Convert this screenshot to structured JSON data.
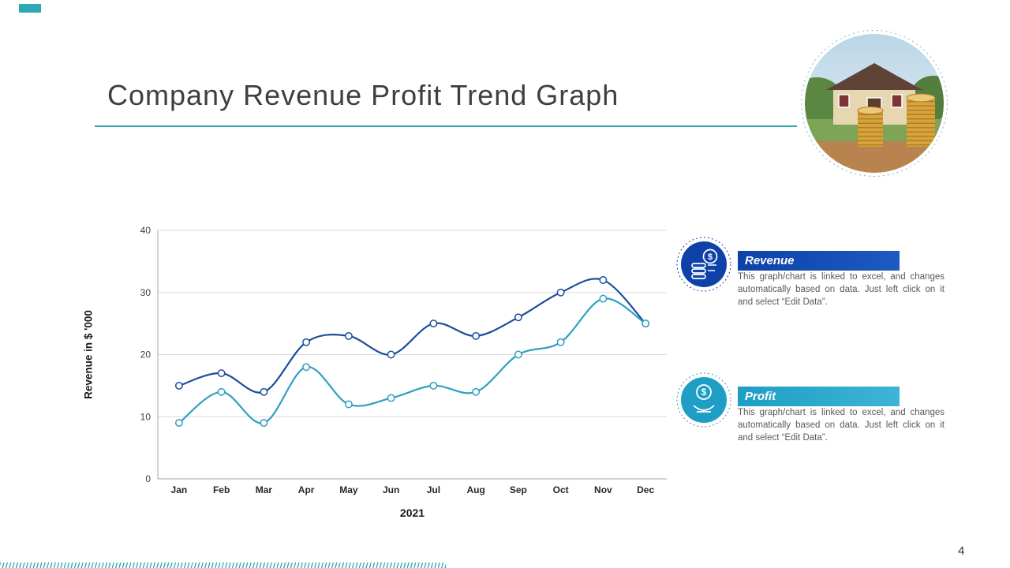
{
  "slide": {
    "title": "Company Revenue Profit Trend Graph",
    "page_number": "4"
  },
  "chart_data": {
    "type": "line",
    "categories": [
      "Jan",
      "Feb",
      "Mar",
      "Apr",
      "May",
      "Jun",
      "Jul",
      "Aug",
      "Sep",
      "Oct",
      "Nov",
      "Dec"
    ],
    "series": [
      {
        "name": "Revenue",
        "color": "#1b4e9b",
        "values": [
          15,
          17,
          14,
          22,
          23,
          20,
          25,
          23,
          26,
          30,
          32,
          25
        ]
      },
      {
        "name": "Profit",
        "color": "#2f9fc4",
        "values": [
          9,
          14,
          9,
          18,
          12,
          13,
          15,
          14,
          20,
          22,
          29,
          25
        ]
      }
    ],
    "xlabel": "2021",
    "ylabel": "Revenue in $ '000",
    "ylim": [
      0,
      40
    ],
    "yticks": [
      0,
      10,
      20,
      30,
      40
    ],
    "grid": true,
    "legend_position": "right"
  },
  "panel": {
    "revenue": {
      "label": "Revenue",
      "description": "This graph/chart is linked to excel, and changes automatically based on data. Just left click on it and select “Edit Data”.",
      "color": "#0e42a8",
      "color_light": "#1d5ac2",
      "icon": "money-stack-icon"
    },
    "profit": {
      "label": "Profit",
      "description": "This graph/chart is linked to excel, and changes automatically based on data. Just left click on it and select “Edit Data”.",
      "color": "#1e9ec5",
      "color_light": "#3db4d6",
      "icon": "hand-dollar-icon"
    }
  },
  "theme": {
    "accent_teal": "#2fa8b5",
    "title_color": "#3f3f3f",
    "text_gray": "#595959"
  }
}
